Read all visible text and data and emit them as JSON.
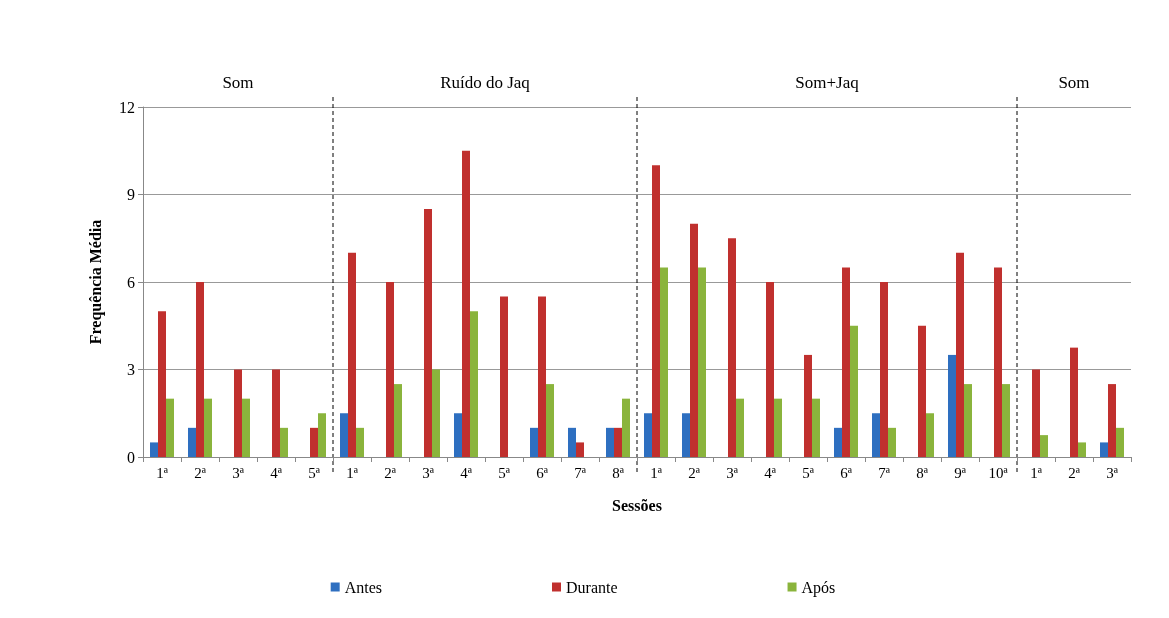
{
  "chart_data": {
    "type": "bar",
    "xlabel": "Sessões",
    "ylabel": "Frequência Média",
    "categories": [
      "1ª",
      "2ª",
      "3ª",
      "4ª",
      "5ª",
      "1ª",
      "2ª",
      "3ª",
      "4ª",
      "5ª",
      "6ª",
      "7ª",
      "8ª",
      "1ª",
      "2ª",
      "3ª",
      "4ª",
      "5ª",
      "6ª",
      "7ª",
      "8ª",
      "9ª",
      "10ª",
      "1ª",
      "2ª",
      "3ª"
    ],
    "series": [
      {
        "name": "Antes",
        "color": "#2e6fc0",
        "values": [
          0.5,
          1,
          0,
          0,
          0,
          1.5,
          0,
          0,
          1.5,
          0,
          1,
          1,
          1,
          1.5,
          1.5,
          0,
          0,
          0,
          1,
          1.5,
          0,
          3.5,
          0,
          0,
          0,
          0.5
        ]
      },
      {
        "name": "Durante",
        "color": "#c0302e",
        "values": [
          5,
          6,
          3,
          3,
          1,
          7,
          6,
          8.5,
          10.5,
          5.5,
          5.5,
          0.5,
          1,
          10,
          8,
          7.5,
          6,
          3.5,
          6.5,
          6,
          4.5,
          7,
          6.5,
          3,
          3.75,
          2.5
        ]
      },
      {
        "name": "Após",
        "color": "#8ab43c",
        "values": [
          2,
          2,
          2,
          1,
          1.5,
          1,
          2.5,
          3,
          5,
          0,
          2.5,
          0,
          2,
          6.5,
          6.5,
          2,
          2,
          2,
          4.5,
          1,
          1.5,
          2.5,
          2.5,
          0.75,
          0.5,
          1
        ]
      }
    ],
    "ylim": [
      0,
      12
    ],
    "yticks": [
      0,
      3,
      6,
      9,
      12
    ],
    "grid": "y",
    "legend": "bottom",
    "annotations": [
      "Som",
      "Ruído do Jaq",
      "Som+Jaq",
      "Som"
    ]
  }
}
